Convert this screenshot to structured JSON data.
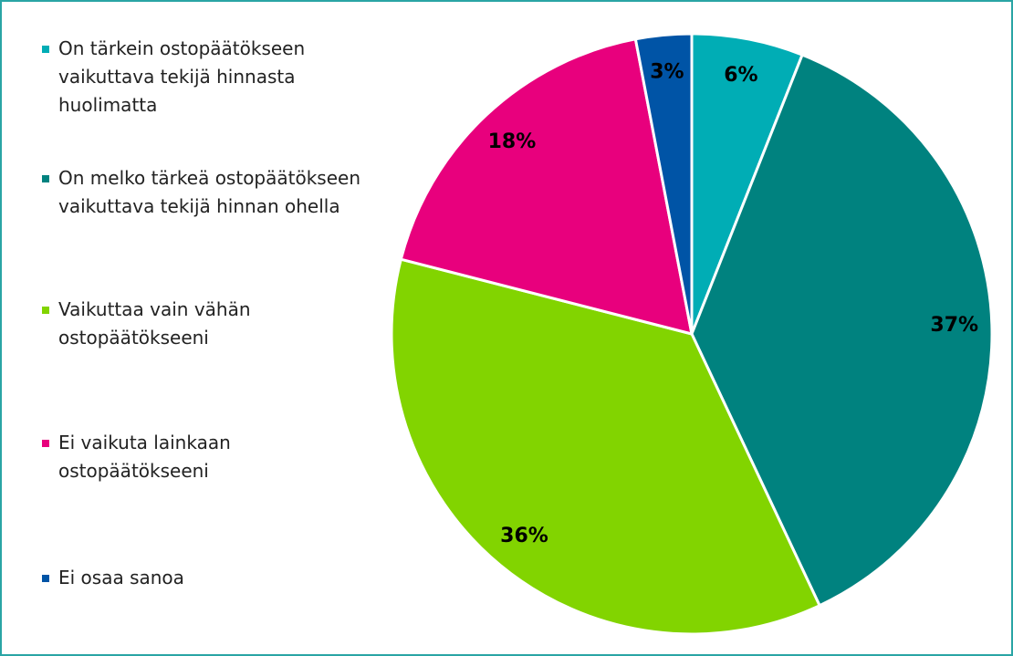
{
  "chart_data": {
    "type": "pie",
    "categories": [
      "On tärkein ostopäätökseen vaikuttava tekijä hinnasta huolimatta",
      "On melko tärkeä ostopäätökseen vaikuttava tekijä hinnan ohella",
      "Vaikuttaa vain vähän ostopäätökseeni",
      "Ei vaikuta lainkaan ostopäätökseeni",
      "Ei osaa sanoa"
    ],
    "values": [
      6,
      37,
      36,
      18,
      3
    ],
    "value_labels": [
      "6%",
      "37%",
      "36%",
      "18%",
      "3%"
    ],
    "colors": [
      "#00adb5",
      "#00827f",
      "#82d400",
      "#e8007d",
      "#0054a6"
    ]
  }
}
